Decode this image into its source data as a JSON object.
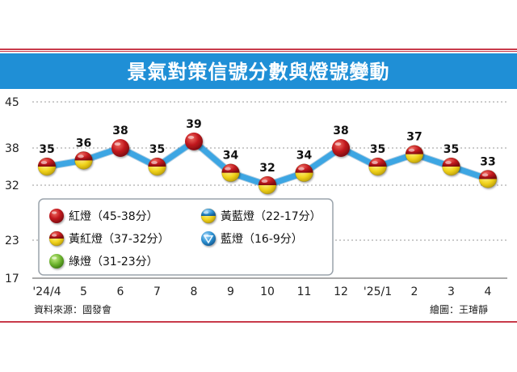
{
  "chart_data": {
    "type": "line",
    "title": "景氣對策信號分數與燈號變動",
    "categories": [
      "'24/4",
      "5",
      "6",
      "7",
      "8",
      "9",
      "10",
      "11",
      "12",
      "'25/1",
      "2",
      "3",
      "4"
    ],
    "values": [
      35,
      36,
      38,
      35,
      39,
      34,
      32,
      34,
      38,
      35,
      37,
      35,
      33
    ],
    "signals": [
      "yellow-red",
      "yellow-red",
      "red",
      "yellow-red",
      "red",
      "yellow-red",
      "yellow-red",
      "yellow-red",
      "red",
      "yellow-red",
      "yellow-red",
      "yellow-red",
      "yellow-red"
    ],
    "yticks": [
      45,
      38,
      32,
      23,
      17
    ],
    "ylim": [
      17,
      45
    ],
    "legend": [
      {
        "signal": "red",
        "label": "紅燈（45-38分）"
      },
      {
        "signal": "yellow-blue",
        "label": "黃藍燈（22-17分）"
      },
      {
        "signal": "yellow-red",
        "label": "黃紅燈（37-32分）"
      },
      {
        "signal": "blue",
        "label": "藍燈（16-9分）"
      },
      {
        "signal": "green",
        "label": "綠燈（31-23分）"
      }
    ],
    "source": "資料來源：國發會",
    "credit": "繪圖：王璿靜"
  },
  "colors": {
    "title_bg": "#1f8fd6",
    "line": "#3da6e3",
    "red": "#c0171d",
    "yellow": "#f0d21a",
    "green": "#6cb32e",
    "blue": "#2b8fd0",
    "frame_top": "#c83a4a",
    "frame_bottom": "#c83a4a",
    "grid": "#999999"
  }
}
